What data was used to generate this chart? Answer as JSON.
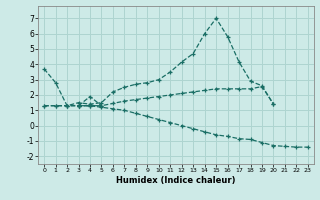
{
  "xlabel": "Humidex (Indice chaleur)",
  "background_color": "#cdeae7",
  "grid_color": "#aed4d0",
  "line_color": "#1a6e65",
  "xlim": [
    -0.5,
    23.5
  ],
  "ylim": [
    -2.5,
    7.8
  ],
  "xticks": [
    0,
    1,
    2,
    3,
    4,
    5,
    6,
    7,
    8,
    9,
    10,
    11,
    12,
    13,
    14,
    15,
    16,
    17,
    18,
    19,
    20,
    21,
    22,
    23
  ],
  "yticks": [
    -2,
    -1,
    0,
    1,
    2,
    3,
    4,
    5,
    6,
    7
  ],
  "series": [
    {
      "x": [
        0,
        1,
        2,
        3,
        4,
        5,
        6,
        7,
        8,
        9,
        10,
        11,
        12,
        13,
        14,
        15,
        16,
        17,
        18,
        19,
        20
      ],
      "y": [
        3.7,
        2.8,
        1.3,
        1.5,
        1.4,
        1.5,
        2.2,
        2.5,
        2.7,
        2.8,
        3.0,
        3.5,
        4.15,
        4.7,
        6.0,
        7.0,
        5.8,
        4.15,
        2.9,
        2.6,
        1.4
      ]
    },
    {
      "x": [
        0,
        1,
        2,
        3,
        4,
        5,
        6,
        7,
        8,
        9,
        10,
        11,
        12,
        13,
        14,
        15,
        16,
        17,
        18,
        19,
        20
      ],
      "y": [
        1.3,
        1.3,
        1.3,
        1.3,
        1.3,
        1.3,
        1.45,
        1.6,
        1.7,
        1.8,
        1.9,
        2.0,
        2.1,
        2.2,
        2.3,
        2.4,
        2.4,
        2.4,
        2.4,
        2.55,
        1.4
      ]
    },
    {
      "comment": "small triangle 3-4-5",
      "x": [
        3,
        4,
        5,
        3
      ],
      "y": [
        1.3,
        1.9,
        1.3,
        1.3
      ]
    },
    {
      "x": [
        0,
        1,
        2,
        3,
        4,
        5,
        6,
        7,
        8,
        9,
        10,
        11,
        12,
        13,
        14,
        15,
        16,
        17,
        18,
        19,
        20,
        21,
        22,
        23
      ],
      "y": [
        1.3,
        1.3,
        1.3,
        1.3,
        1.3,
        1.2,
        1.1,
        1.0,
        0.8,
        0.6,
        0.4,
        0.2,
        0.0,
        -0.2,
        -0.4,
        -0.6,
        -0.7,
        -0.85,
        -0.9,
        -1.1,
        -1.3,
        -1.35,
        -1.4,
        -1.4
      ]
    }
  ]
}
